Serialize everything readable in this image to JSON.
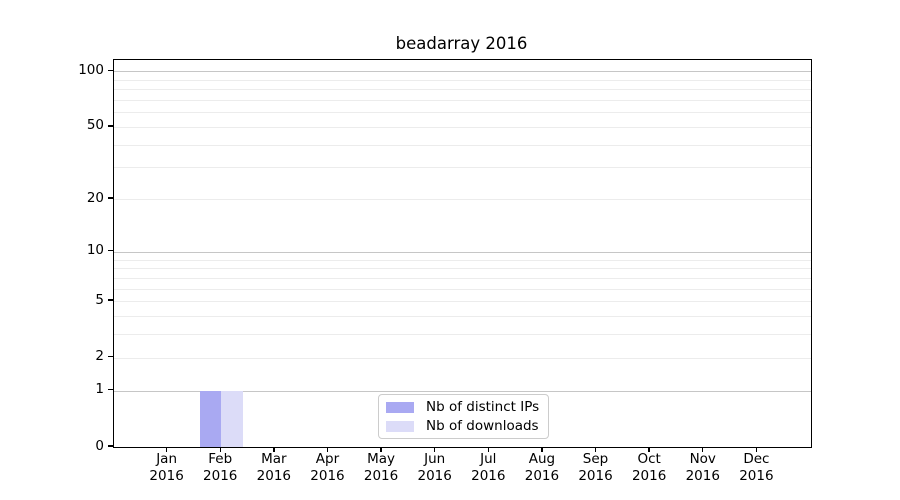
{
  "title": "beadarray 2016",
  "chart_data": {
    "type": "bar",
    "title": "beadarray 2016",
    "categories": [
      {
        "month": "Jan",
        "year": "2016"
      },
      {
        "month": "Feb",
        "year": "2016"
      },
      {
        "month": "Mar",
        "year": "2016"
      },
      {
        "month": "Apr",
        "year": "2016"
      },
      {
        "month": "May",
        "year": "2016"
      },
      {
        "month": "Jun",
        "year": "2016"
      },
      {
        "month": "Jul",
        "year": "2016"
      },
      {
        "month": "Aug",
        "year": "2016"
      },
      {
        "month": "Sep",
        "year": "2016"
      },
      {
        "month": "Oct",
        "year": "2016"
      },
      {
        "month": "Nov",
        "year": "2016"
      },
      {
        "month": "Dec",
        "year": "2016"
      }
    ],
    "series": [
      {
        "name": "Nb of distinct IPs",
        "color": "#a9a9f2",
        "values": [
          0,
          1,
          0,
          0,
          0,
          0,
          0,
          0,
          0,
          0,
          0,
          0
        ]
      },
      {
        "name": "Nb of downloads",
        "color": "#dcdcf8",
        "values": [
          0,
          1,
          0,
          0,
          0,
          0,
          0,
          0,
          0,
          0,
          0,
          0
        ]
      }
    ],
    "xlabel": "",
    "ylabel": "",
    "y_scale": "log1p",
    "ylim": [
      0,
      115
    ],
    "y_ticks": [
      0,
      1,
      2,
      5,
      10,
      20,
      50,
      100
    ],
    "y_major_gridlines": [
      1,
      10,
      100
    ],
    "y_minor_gridlines": [
      2,
      3,
      4,
      5,
      6,
      7,
      8,
      9,
      20,
      30,
      40,
      50,
      60,
      70,
      80,
      90
    ],
    "grid": "horizontal",
    "legend": {
      "position": "bottom-center-inside",
      "entries": [
        "Nb of distinct IPs",
        "Nb of downloads"
      ]
    },
    "colors": {
      "grid_major": "#c6c6c6",
      "grid_minor": "#ececec",
      "axis": "#000000",
      "legend_border": "#cccccc"
    }
  }
}
